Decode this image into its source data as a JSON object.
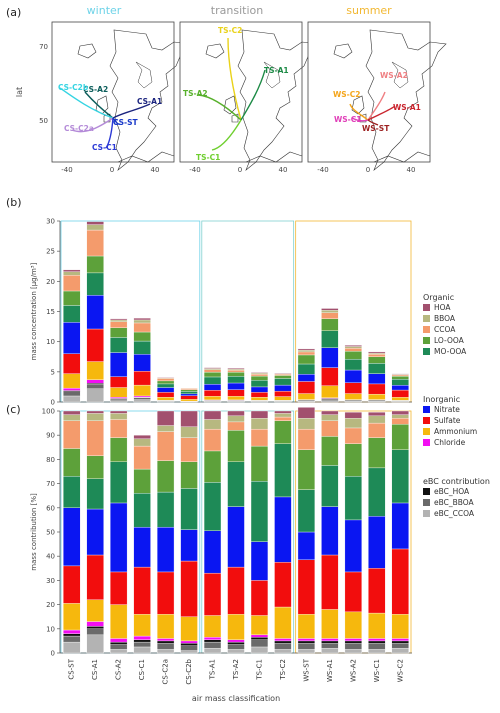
{
  "panels": {
    "a": "(a)",
    "b": "(b)",
    "c": "(c)"
  },
  "seasons": [
    {
      "name": "winter",
      "color": "#6fd3e8"
    },
    {
      "name": "transition",
      "color": "#9a9a9a"
    },
    {
      "name": "summer",
      "color": "#f2b833"
    }
  ],
  "maps": {
    "ylabel": "lat",
    "yticks": [
      "70",
      "50"
    ],
    "xticks": [
      "-40",
      "0",
      "40"
    ],
    "winter_routes": [
      {
        "label": "CS-A1",
        "color": "#1a237e"
      },
      {
        "label": "CS-A2",
        "color": "#0b5d5a"
      },
      {
        "label": "CS-C2b",
        "color": "#35d4e2"
      },
      {
        "label": "CS-C2a",
        "color": "#b48ad8"
      },
      {
        "label": "CS-C1",
        "color": "#2b39d6"
      },
      {
        "label": "CS-ST",
        "color": "#1636c8"
      }
    ],
    "transition_routes": [
      {
        "label": "TS-C2",
        "color": "#e9d21a"
      },
      {
        "label": "TS-A1",
        "color": "#1c8a45"
      },
      {
        "label": "TS-A2",
        "color": "#57b02b"
      },
      {
        "label": "TS-C1",
        "color": "#6fcf2f"
      }
    ],
    "summer_routes": [
      {
        "label": "WS-A2",
        "color": "#ef7f82"
      },
      {
        "label": "WS-C2",
        "color": "#f4a51b"
      },
      {
        "label": "WS-A1",
        "color": "#c9232c"
      },
      {
        "label": "WS-C1",
        "color": "#e03fb8"
      },
      {
        "label": "WS-ST",
        "color": "#9c1f1f"
      }
    ]
  },
  "legend": {
    "organic_title": "Organic",
    "organic": [
      {
        "label": "HOA",
        "color": "#a2506e"
      },
      {
        "label": "BBOA",
        "color": "#b7b880"
      },
      {
        "label": "CCOA",
        "color": "#f49b6c"
      },
      {
        "label": "LO-OOA",
        "color": "#5da13a"
      },
      {
        "label": "MO-OOA",
        "color": "#1e8a57"
      }
    ],
    "inorganic_title": "Inorganic",
    "inorganic": [
      {
        "label": "Nitrate",
        "color": "#0a16f2"
      },
      {
        "label": "Sulfate",
        "color": "#f20d0d"
      },
      {
        "label": "Ammonium",
        "color": "#f6b80d"
      },
      {
        "label": "Chloride",
        "color": "#f20ff2"
      }
    ],
    "ebc_title": "eBC contribution",
    "ebc": [
      {
        "label": "eBC_HOA",
        "color": "#111111"
      },
      {
        "label": "eBC_BBOA",
        "color": "#6a6a6a"
      },
      {
        "label": "eBC_CCOA",
        "color": "#b3b3b3"
      }
    ]
  },
  "chart_data": [
    {
      "type": "bar",
      "stacked": true,
      "ylabel": "mass concentration [µg/m³]",
      "ylim": [
        0,
        30
      ],
      "yticks": [
        0,
        5,
        10,
        15,
        20,
        25,
        30
      ],
      "categories": [
        "CS-ST",
        "CS-A1",
        "CS-A2",
        "CS-C1",
        "CS-C2a",
        "CS-C2b",
        "TS-A1",
        "TS-A2",
        "TS-C1",
        "TS-C2",
        "WS-ST",
        "WS-A1",
        "WS-A2",
        "WS-C1",
        "WS-C2"
      ],
      "series": [
        {
          "name": "eBC_CCOA",
          "values": [
            1.0,
            2.2,
            0.2,
            0.4,
            0.1,
            0.05,
            0.1,
            0.1,
            0.1,
            0.1,
            0.1,
            0.2,
            0.1,
            0.1,
            0.1
          ]
        },
        {
          "name": "eBC_BBOA",
          "values": [
            0.7,
            0.7,
            0.3,
            0.3,
            0.1,
            0.05,
            0.15,
            0.15,
            0.1,
            0.1,
            0.2,
            0.3,
            0.2,
            0.2,
            0.1
          ]
        },
        {
          "name": "eBC_HOA",
          "values": [
            0.2,
            0.2,
            0.1,
            0.1,
            0.05,
            0.02,
            0.05,
            0.05,
            0.05,
            0.05,
            0.05,
            0.1,
            0.05,
            0.05,
            0.05
          ]
        },
        {
          "name": "Chloride",
          "values": [
            0.4,
            0.6,
            0.2,
            0.2,
            0.05,
            0.03,
            0.05,
            0.05,
            0.05,
            0.05,
            0.05,
            0.1,
            0.05,
            0.05,
            0.03
          ]
        },
        {
          "name": "Ammonium",
          "values": [
            2.4,
            3.0,
            1.6,
            1.8,
            0.5,
            0.3,
            0.6,
            0.6,
            0.5,
            0.6,
            1.0,
            2.0,
            1.0,
            0.9,
            0.5
          ]
        },
        {
          "name": "Sulfate",
          "values": [
            3.3,
            5.4,
            1.8,
            2.3,
            0.8,
            0.6,
            1.0,
            1.1,
            0.8,
            0.9,
            2.0,
            3.0,
            1.8,
            1.7,
            1.2
          ]
        },
        {
          "name": "Nitrate",
          "values": [
            5.2,
            5.6,
            4.0,
            2.8,
            0.8,
            0.3,
            1.0,
            1.1,
            0.9,
            1.0,
            1.2,
            3.3,
            2.1,
            1.7,
            0.8
          ]
        },
        {
          "name": "MO-OOA",
          "values": [
            2.8,
            3.7,
            2.5,
            2.2,
            0.6,
            0.4,
            1.2,
            1.1,
            1.1,
            1.1,
            1.7,
            2.8,
            1.8,
            1.7,
            1.0
          ]
        },
        {
          "name": "LO-OOA",
          "values": [
            2.4,
            2.8,
            1.6,
            1.5,
            0.5,
            0.3,
            0.8,
            0.7,
            0.7,
            0.5,
            1.5,
            2.0,
            1.3,
            1.1,
            0.5
          ]
        },
        {
          "name": "CCOA",
          "values": [
            2.6,
            4.3,
            1.0,
            1.5,
            0.4,
            0.2,
            0.4,
            0.3,
            0.3,
            0.2,
            0.5,
            1.0,
            0.5,
            0.4,
            0.2
          ]
        },
        {
          "name": "BBOA",
          "values": [
            0.6,
            0.9,
            0.3,
            0.5,
            0.1,
            0.07,
            0.2,
            0.2,
            0.2,
            0.1,
            0.3,
            0.4,
            0.3,
            0.2,
            0.1
          ]
        },
        {
          "name": "HOA",
          "values": [
            0.3,
            0.5,
            0.2,
            0.3,
            0.1,
            0.05,
            0.15,
            0.15,
            0.1,
            0.1,
            0.2,
            0.3,
            0.2,
            0.2,
            0.1
          ]
        }
      ]
    },
    {
      "type": "bar",
      "stacked": true,
      "xlabel": "air mass classification",
      "ylabel": "mass contribution [%]",
      "ylim": [
        0,
        100
      ],
      "yticks": [
        0,
        10,
        20,
        30,
        40,
        50,
        60,
        70,
        80,
        90,
        100
      ],
      "categories": [
        "CS-ST",
        "CS-A1",
        "CS-A2",
        "CS-C1",
        "CS-C2a",
        "CS-C2b",
        "TS-A1",
        "TS-A2",
        "TS-C1",
        "TS-C2",
        "WS-ST",
        "WS-A1",
        "WS-A2",
        "WS-C1",
        "WS-C2"
      ],
      "series": [
        {
          "name": "eBC_CCOA",
          "values": [
            4.5,
            7.5,
            1.5,
            2.5,
            1.5,
            1.0,
            2.0,
            1.5,
            2.5,
            1.5,
            1.5,
            2.0,
            1.5,
            1.5,
            2.0
          ]
        },
        {
          "name": "eBC_BBOA",
          "values": [
            2.5,
            2.5,
            2.0,
            2.0,
            2.5,
            2.0,
            2.5,
            2.0,
            3.0,
            2.5,
            2.5,
            2.0,
            2.5,
            2.5,
            2.0
          ]
        },
        {
          "name": "eBC_HOA",
          "values": [
            1.0,
            1.0,
            1.0,
            1.0,
            1.0,
            1.0,
            1.0,
            1.0,
            1.0,
            1.0,
            1.0,
            1.0,
            1.0,
            1.0,
            1.0
          ]
        },
        {
          "name": "Chloride",
          "values": [
            1.5,
            2.0,
            1.5,
            1.5,
            1.0,
            1.0,
            1.0,
            1.0,
            1.0,
            1.0,
            1.0,
            1.0,
            1.0,
            1.0,
            1.0
          ]
        },
        {
          "name": "Ammonium",
          "values": [
            11.0,
            9.0,
            14.0,
            9.0,
            10.0,
            10.0,
            9.0,
            10.5,
            8.0,
            13.0,
            10.0,
            12.0,
            11.0,
            10.5,
            10.0
          ]
        },
        {
          "name": "Sulfate",
          "values": [
            15.5,
            18.5,
            13.5,
            19.5,
            17.5,
            23.0,
            17.5,
            19.5,
            14.5,
            18.5,
            22.5,
            22.5,
            16.5,
            18.5,
            27.0
          ]
        },
        {
          "name": "Nitrate",
          "values": [
            24.0,
            19.0,
            28.5,
            16.5,
            18.5,
            13.0,
            17.5,
            25.0,
            16.0,
            27.0,
            11.5,
            20.0,
            21.5,
            21.5,
            19.0
          ]
        },
        {
          "name": "MO-OOA",
          "values": [
            13.0,
            12.5,
            17.0,
            14.0,
            14.5,
            17.0,
            20.0,
            18.5,
            25.0,
            22.0,
            17.5,
            17.0,
            18.0,
            20.0,
            22.0
          ]
        },
        {
          "name": "LO-OOA",
          "values": [
            11.5,
            9.5,
            10.0,
            10.0,
            13.0,
            11.0,
            13.0,
            13.0,
            14.5,
            9.5,
            16.5,
            12.0,
            13.5,
            12.5,
            10.5
          ]
        },
        {
          "name": "CCOA",
          "values": [
            11.5,
            14.5,
            7.5,
            9.5,
            12.0,
            10.0,
            9.0,
            3.5,
            7.0,
            1.5,
            8.5,
            6.5,
            6.5,
            6.0,
            2.5
          ]
        },
        {
          "name": "BBOA",
          "values": [
            2.5,
            3.0,
            2.5,
            3.0,
            2.5,
            4.5,
            4.0,
            2.5,
            4.5,
            1.5,
            4.5,
            2.5,
            4.0,
            3.0,
            1.5
          ]
        },
        {
          "name": "HOA",
          "values": [
            1.5,
            1.0,
            1.0,
            1.5,
            6.0,
            6.5,
            3.5,
            2.0,
            3.0,
            1.0,
            4.5,
            1.5,
            2.5,
            1.5,
            1.5
          ]
        }
      ]
    }
  ]
}
